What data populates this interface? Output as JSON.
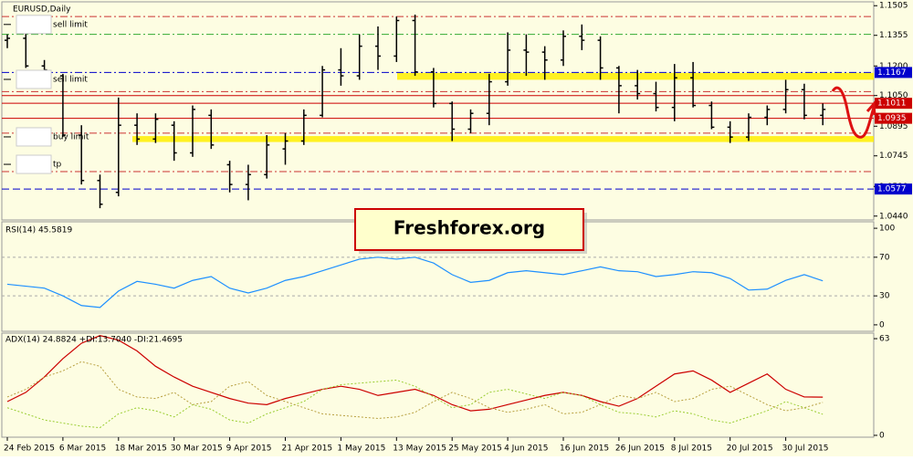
{
  "chart_data": [
    {
      "type": "ohlc",
      "title": "EURUSD,Daily",
      "watermark": "Freshforex.org",
      "color": "#000000",
      "categories": [
        "24 Feb 2015",
        null,
        null,
        "6 Mar 2015",
        null,
        null,
        "18 Mar 2015",
        null,
        null,
        "30 Mar 2015",
        null,
        null,
        "9 Apr 2015",
        null,
        null,
        "21 Apr 2015",
        null,
        null,
        "1 May 2015",
        null,
        null,
        "13 May 2015",
        null,
        null,
        "25 May 2015",
        null,
        null,
        "4 Jun 2015",
        null,
        null,
        "16 Jun 2015",
        null,
        null,
        "26 Jun 2015",
        null,
        null,
        "8 Jul 2015",
        null,
        null,
        "20 Jul 2015",
        null,
        null,
        "30 Jul 2015",
        null,
        null
      ],
      "open": [
        1.133,
        1.134,
        1.12,
        1.115,
        1.085,
        1.062,
        1.056,
        1.09,
        1.083,
        1.09,
        1.076,
        1.095,
        1.07,
        1.06,
        1.065,
        1.078,
        1.082,
        1.095,
        1.118,
        1.115,
        1.13,
        1.125,
        1.143,
        1.117,
        1.101,
        1.088,
        1.096,
        1.112,
        1.128,
        1.127,
        1.123,
        1.135,
        1.133,
        1.119,
        1.11,
        1.106,
        1.099,
        1.114,
        1.1,
        1.089,
        1.084,
        1.094,
        1.098,
        1.108,
        1.095
      ],
      "high": [
        1.136,
        1.138,
        1.123,
        1.116,
        1.09,
        1.065,
        1.104,
        1.096,
        1.096,
        1.092,
        1.1,
        1.098,
        1.072,
        1.07,
        1.085,
        1.086,
        1.098,
        1.12,
        1.129,
        1.136,
        1.14,
        1.145,
        1.146,
        1.119,
        1.102,
        1.098,
        1.116,
        1.137,
        1.136,
        1.13,
        1.138,
        1.141,
        1.135,
        1.12,
        1.118,
        1.112,
        1.121,
        1.122,
        1.102,
        1.092,
        1.096,
        1.1,
        1.113,
        1.111,
        1.101
      ],
      "low": [
        1.129,
        1.119,
        1.11,
        1.084,
        1.06,
        1.048,
        1.054,
        1.08,
        1.081,
        1.072,
        1.074,
        1.078,
        1.056,
        1.052,
        1.063,
        1.07,
        1.08,
        1.094,
        1.11,
        1.113,
        1.118,
        1.122,
        1.115,
        1.099,
        1.082,
        1.086,
        1.09,
        1.11,
        1.115,
        1.113,
        1.12,
        1.128,
        1.113,
        1.096,
        1.103,
        1.097,
        1.092,
        1.099,
        1.088,
        1.081,
        1.082,
        1.09,
        1.096,
        1.093,
        1.09
      ],
      "close": [
        1.134,
        1.12,
        1.118,
        1.085,
        1.062,
        1.05,
        1.09,
        1.083,
        1.093,
        1.076,
        1.098,
        1.08,
        1.06,
        1.065,
        1.08,
        1.082,
        1.095,
        1.118,
        1.115,
        1.13,
        1.125,
        1.143,
        1.117,
        1.101,
        1.088,
        1.096,
        1.112,
        1.128,
        1.127,
        1.123,
        1.135,
        1.133,
        1.119,
        1.11,
        1.106,
        1.099,
        1.114,
        1.1,
        1.089,
        1.084,
        1.094,
        1.098,
        1.108,
        1.095,
        1.098
      ],
      "ylim": [
        1.0425,
        1.152
      ],
      "yticks": [
        1.1505,
        1.1355,
        {
          "value": 1.12,
          "label": "1.1200"
        },
        {
          "value": 1.105,
          "label": "1.1050"
        },
        1.0895,
        1.0745,
        {
          "value": 1.059,
          "label": "1.0590"
        },
        {
          "value": 1.044,
          "label": "1.0440"
        }
      ],
      "levels": [
        {
          "value": 1.145,
          "color": "#cc3333",
          "style": "dashdot"
        },
        {
          "value": 1.136,
          "color": "#33aa33",
          "style": "dashdot"
        },
        {
          "value": 1.1167,
          "color": "#0000cc",
          "style": "dashdot"
        },
        {
          "value": 1.107,
          "color": "#cc3333",
          "style": "dashdot"
        },
        {
          "value": 1.105,
          "color": "#cc0000",
          "style": "solid"
        },
        {
          "value": 1.1011,
          "color": "#cc0000",
          "style": "solid"
        },
        {
          "value": 1.0935,
          "color": "#cc0000",
          "style": "solid"
        },
        {
          "value": 1.086,
          "color": "#cc3333",
          "style": "dashdot"
        },
        {
          "value": 1.0665,
          "color": "#cc3333",
          "style": "dashdot"
        },
        {
          "value": 1.0577,
          "color": "#0000cc",
          "style": "dashed"
        }
      ],
      "zones": [
        {
          "from": 1.113,
          "to": 1.1165,
          "color": "#ffee00"
        },
        {
          "from": 1.0815,
          "to": 1.0845,
          "color": "#ffee00"
        }
      ],
      "price_tags": [
        {
          "value": 1.1167,
          "color": "#0000cc"
        },
        {
          "value": 1.1011,
          "color": "#cc0000"
        },
        {
          "value": 1.0935,
          "color": "#cc0000"
        },
        {
          "value": 1.0577,
          "color": "#0000cc"
        }
      ],
      "orders": [
        {
          "label": "sell limit",
          "value": 1.141
        },
        {
          "label": "sell limit",
          "value": 1.1132
        },
        {
          "label": "buy limit",
          "value": 1.0841
        },
        {
          "label": "tp",
          "value": 1.0702
        }
      ]
    },
    {
      "type": "line",
      "title": "RSI(14) 45.5819",
      "color": "#1e90ff",
      "values": [
        42,
        40,
        38,
        30,
        20,
        18,
        35,
        45,
        42,
        38,
        46,
        50,
        38,
        33,
        38,
        46,
        50,
        56,
        62,
        68,
        70,
        68,
        70,
        64,
        52,
        44,
        46,
        54,
        56,
        54,
        52,
        56,
        60,
        56,
        55,
        50,
        52,
        55,
        54,
        48,
        36,
        37,
        46,
        52,
        45.5819
      ],
      "ylim": [
        -6.7,
        106.7
      ],
      "yticks": [
        100,
        70,
        30,
        0
      ]
    },
    {
      "type": "line",
      "title": "ADX(14) 24.8824 +DI:13.7040 -DI:21.4695",
      "series": [
        {
          "color": "#cc0000",
          "style": "solid",
          "values": [
            22,
            28,
            38,
            50,
            60,
            65,
            62,
            55,
            45,
            38,
            32,
            28,
            24,
            21,
            20,
            24,
            27,
            30,
            32,
            30,
            26,
            28,
            30,
            26,
            20,
            16,
            17,
            20,
            23,
            26,
            28,
            26,
            22,
            19,
            24,
            32,
            40,
            42,
            36,
            28,
            34,
            40,
            30,
            25,
            24.8824
          ]
        },
        {
          "color": "#9acd32",
          "style": "dotted",
          "values": [
            18,
            14,
            10,
            8,
            6,
            5,
            14,
            18,
            16,
            12,
            20,
            17,
            10,
            8,
            14,
            18,
            22,
            30,
            33,
            34,
            35,
            36,
            32,
            25,
            18,
            20,
            28,
            30,
            27,
            24,
            28,
            26,
            20,
            15,
            14,
            12,
            16,
            14,
            10,
            8,
            12,
            16,
            22,
            18,
            13.704
          ]
        },
        {
          "color": "#b8a040",
          "style": "dotted",
          "values": [
            25,
            30,
            38,
            42,
            48,
            45,
            30,
            25,
            24,
            28,
            20,
            22,
            32,
            35,
            26,
            22,
            18,
            14,
            13,
            12,
            11,
            12,
            15,
            22,
            28,
            24,
            18,
            15,
            17,
            20,
            14,
            15,
            20,
            26,
            24,
            28,
            22,
            24,
            30,
            32,
            26,
            20,
            16,
            18,
            21.4695
          ]
        }
      ],
      "ylim": [
        -1.2,
        66.6
      ],
      "yticks": [
        63,
        0
      ]
    }
  ]
}
